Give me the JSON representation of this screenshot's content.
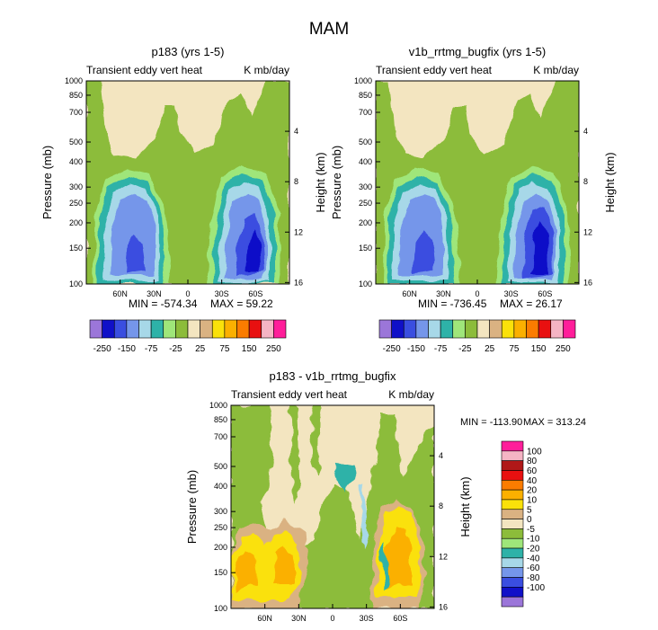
{
  "figure": {
    "title": "MAM",
    "season": "MAM"
  },
  "colors": {
    "levels_abs": [
      "#9b76d9",
      "#1010c8",
      "#3a4ee0",
      "#7596ea",
      "#a7d8e8",
      "#2eb2a8",
      "#9fe67a",
      "#8cbc3a",
      "#f3e5c0",
      "#dab282",
      "#fae10a",
      "#fbb000",
      "#fb7c00",
      "#e81010",
      "#f5b4c4",
      "#ff1e9a"
    ],
    "levels_diff": [
      "#9b76d9",
      "#1010c8",
      "#3a4ee0",
      "#7596ea",
      "#a7d8e8",
      "#2eb2a8",
      "#9fe67a",
      "#8cbc3a",
      "#f3e5c0",
      "#dab282",
      "#fae10a",
      "#fbb000",
      "#fb7c00",
      "#e81010",
      "#b01818",
      "#f5b4c4",
      "#ff1e9a"
    ]
  },
  "chart_data": [
    {
      "type": "heatmap",
      "panel": "p1",
      "title": "p183 (yrs 1-5)",
      "left_subtitle": "Transient eddy vert heat",
      "right_subtitle": "K mb/day",
      "ylabel": "Pressure (mb)",
      "ylabel_right": "Height (km)",
      "y_log": true,
      "ylim": [
        1000,
        100
      ],
      "y_ticks": [
        "100",
        "150",
        "200",
        "250",
        "300",
        "400",
        "500",
        "700",
        "850",
        "1000"
      ],
      "y_ticks_right": [
        "16",
        "12",
        "8",
        "4"
      ],
      "x_ticks": [
        "60N",
        "30N",
        "0",
        "30S",
        "60S"
      ],
      "min_label": "MIN = -574.34",
      "max_label": "MAX = 59.22",
      "colorbar_labels": [
        "-250",
        "-150",
        "-75",
        "-25",
        "25",
        "75",
        "150",
        "250"
      ]
    },
    {
      "type": "heatmap",
      "panel": "p2",
      "title": "v1b_rrtmg_bugfix (yrs 1-5)",
      "left_subtitle": "Transient eddy vert heat",
      "right_subtitle": "K mb/day",
      "ylabel": "Pressure (mb)",
      "ylabel_right": "Height (km)",
      "y_log": true,
      "ylim": [
        1000,
        100
      ],
      "y_ticks": [
        "100",
        "150",
        "200",
        "250",
        "300",
        "400",
        "500",
        "700",
        "850",
        "1000"
      ],
      "y_ticks_right": [
        "16",
        "12",
        "8",
        "4"
      ],
      "x_ticks": [
        "60N",
        "30N",
        "0",
        "30S",
        "60S"
      ],
      "min_label": "MIN = -736.45",
      "max_label": "MAX = 26.17",
      "colorbar_labels": [
        "-250",
        "-150",
        "-75",
        "-25",
        "25",
        "75",
        "150",
        "250"
      ]
    },
    {
      "type": "heatmap",
      "panel": "p3",
      "title": "p183 - v1b_rrtmg_bugfix",
      "left_subtitle": "Transient eddy vert heat",
      "right_subtitle": "K mb/day",
      "ylabel": "Pressure (mb)",
      "ylabel_right": "Height (km)",
      "y_log": true,
      "ylim": [
        1000,
        100
      ],
      "y_ticks": [
        "100",
        "150",
        "200",
        "250",
        "300",
        "400",
        "500",
        "700",
        "850",
        "1000"
      ],
      "y_ticks_right": [
        "16",
        "12",
        "8",
        "4"
      ],
      "x_ticks": [
        "60N",
        "30N",
        "0",
        "30S",
        "60S"
      ],
      "min_label": "MIN = -113.90",
      "max_label": "MAX = 313.24",
      "colorbar_labels": [
        "100",
        "80",
        "60",
        "40",
        "20",
        "10",
        "5",
        "0",
        "-5",
        "-10",
        "-20",
        "-40",
        "-60",
        "-80",
        "-100"
      ]
    }
  ]
}
